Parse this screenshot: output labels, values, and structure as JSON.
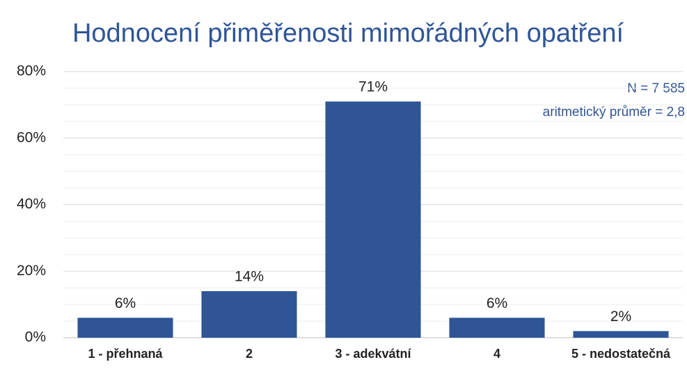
{
  "chart_data": {
    "type": "bar",
    "title": "Hodnocení přiměřenosti mimořádných opatření",
    "annotations": [
      "N = 7 585",
      "aritmetický průměr = 2,8"
    ],
    "categories": [
      "1 - přehnaná",
      "2",
      "3 - adekvátní",
      "4",
      "5 - nedostatečná"
    ],
    "values": [
      6,
      14,
      71,
      6,
      2
    ],
    "value_labels": [
      "6%",
      "14%",
      "71%",
      "6%",
      "2%"
    ],
    "color": "#2f5597",
    "ylim": [
      0,
      80
    ],
    "yticks": [
      {
        "value": 0,
        "label": "0%"
      },
      {
        "value": 20,
        "label": "20%"
      },
      {
        "value": 40,
        "label": "40%"
      },
      {
        "value": 60,
        "label": "60%"
      },
      {
        "value": 80,
        "label": "80%"
      }
    ],
    "minor_yticks": [
      5,
      10,
      15,
      25,
      30,
      35,
      45,
      50,
      55,
      65,
      70,
      75
    ],
    "grid": true
  }
}
